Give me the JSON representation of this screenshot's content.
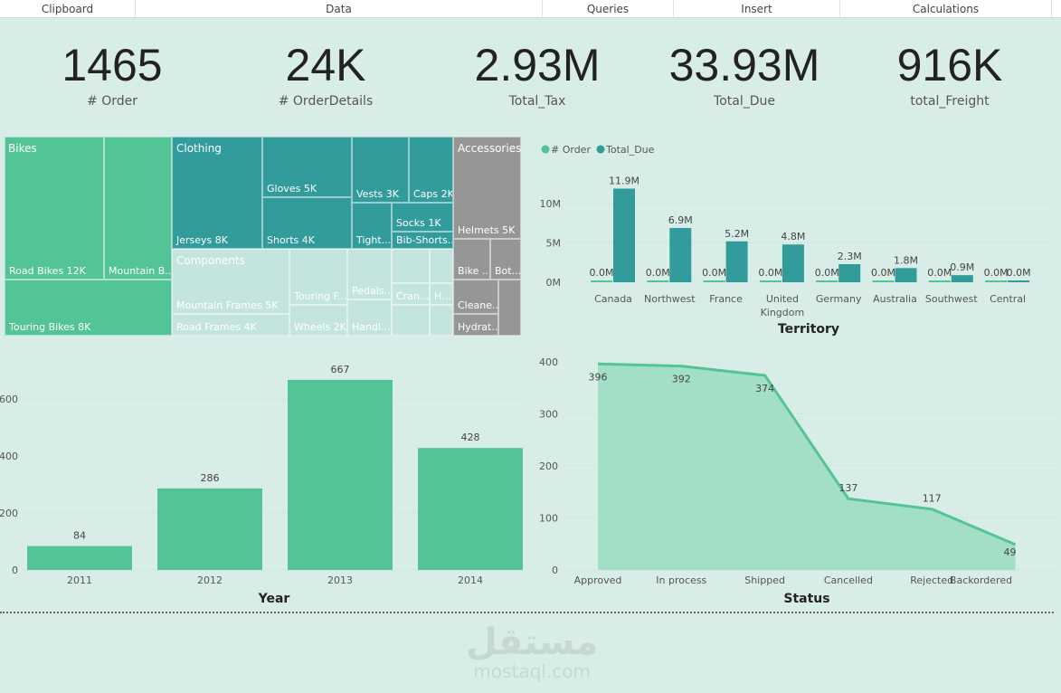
{
  "ribbon": [
    "Clipboard",
    "Data",
    "Queries",
    "Insert",
    "Calculations"
  ],
  "kpis": [
    {
      "value": "1465",
      "label": "# Order"
    },
    {
      "value": "24K",
      "label": "# OrderDetails"
    },
    {
      "value": "2.93M",
      "label": "Total_Tax"
    },
    {
      "value": "33.93M",
      "label": "Total_Due"
    },
    {
      "value": "916K",
      "label": "total_Freight"
    }
  ],
  "treemap": {
    "groups": [
      "Bikes",
      "Clothing",
      "Components",
      "Accessories"
    ],
    "items": [
      "Road Bikes 12K",
      "Mountain B...",
      "Touring Bikes 8K",
      "Jerseys 8K",
      "Gloves 5K",
      "Shorts 4K",
      "Vests 3K",
      "Caps 2K",
      "Tight...",
      "Socks 1K",
      "Bib-Shorts...",
      "Mountain Frames 5K",
      "Road Frames 4K",
      "Touring F...",
      "Wheels 2K",
      "Pedals...",
      "Handl...",
      "Cran...",
      "H...",
      "Helmets 5K",
      "Bike ...",
      "Bot...",
      "Cleane...",
      "Hydrat..."
    ],
    "colors": {
      "Bikes": "#53c495",
      "Clothing": "#329b9b",
      "Components": "#c4e5dd",
      "Accessories": "#969696"
    }
  },
  "chart_data": [
    {
      "type": "bar",
      "xlabel": "Territory",
      "categories": [
        "Canada",
        "Northwest",
        "France",
        "United Kingdom",
        "Germany",
        "Australia",
        "Southwest",
        "Central"
      ],
      "series": [
        {
          "name": "# Order",
          "values": [
            0,
            0,
            0,
            0,
            0,
            0,
            0,
            0
          ],
          "labels": [
            "0.0M",
            "0.0M",
            "0.0M",
            "0.0M",
            "0.0M",
            "0.0M",
            "0.0M",
            "0.0M"
          ],
          "color": "#53c495"
        },
        {
          "name": "Total_Due",
          "values": [
            11.9,
            6.9,
            5.2,
            4.8,
            2.3,
            1.8,
            0.9,
            0
          ],
          "labels": [
            "11.9M",
            "6.9M",
            "5.2M",
            "4.8M",
            "2.3M",
            "1.8M",
            "0.9M",
            "0.0M"
          ],
          "color": "#329b9b"
        }
      ],
      "yticks": [
        "0M",
        "5M",
        "10M"
      ],
      "ylim": [
        0,
        13.5
      ],
      "legend": "top-left"
    },
    {
      "type": "bar",
      "xlabel": "Year",
      "categories": [
        "2011",
        "2012",
        "2013",
        "2014"
      ],
      "values": [
        84,
        286,
        667,
        428
      ],
      "yticks": [
        "0",
        "200",
        "400",
        "600"
      ],
      "ylim": [
        0,
        700
      ],
      "color": "#53c495"
    },
    {
      "type": "area",
      "xlabel": "Status",
      "categories": [
        "Approved",
        "In process",
        "Shipped",
        "Cancelled",
        "Rejected",
        "Backordered"
      ],
      "values": [
        396,
        392,
        374,
        137,
        117,
        49
      ],
      "yticks": [
        "0",
        "100",
        "200",
        "300",
        "400"
      ],
      "ylim": [
        0,
        400
      ],
      "color": "#53c495"
    }
  ],
  "watermark": {
    "arabic": "مستقل",
    "latin": "mostaql.com"
  }
}
